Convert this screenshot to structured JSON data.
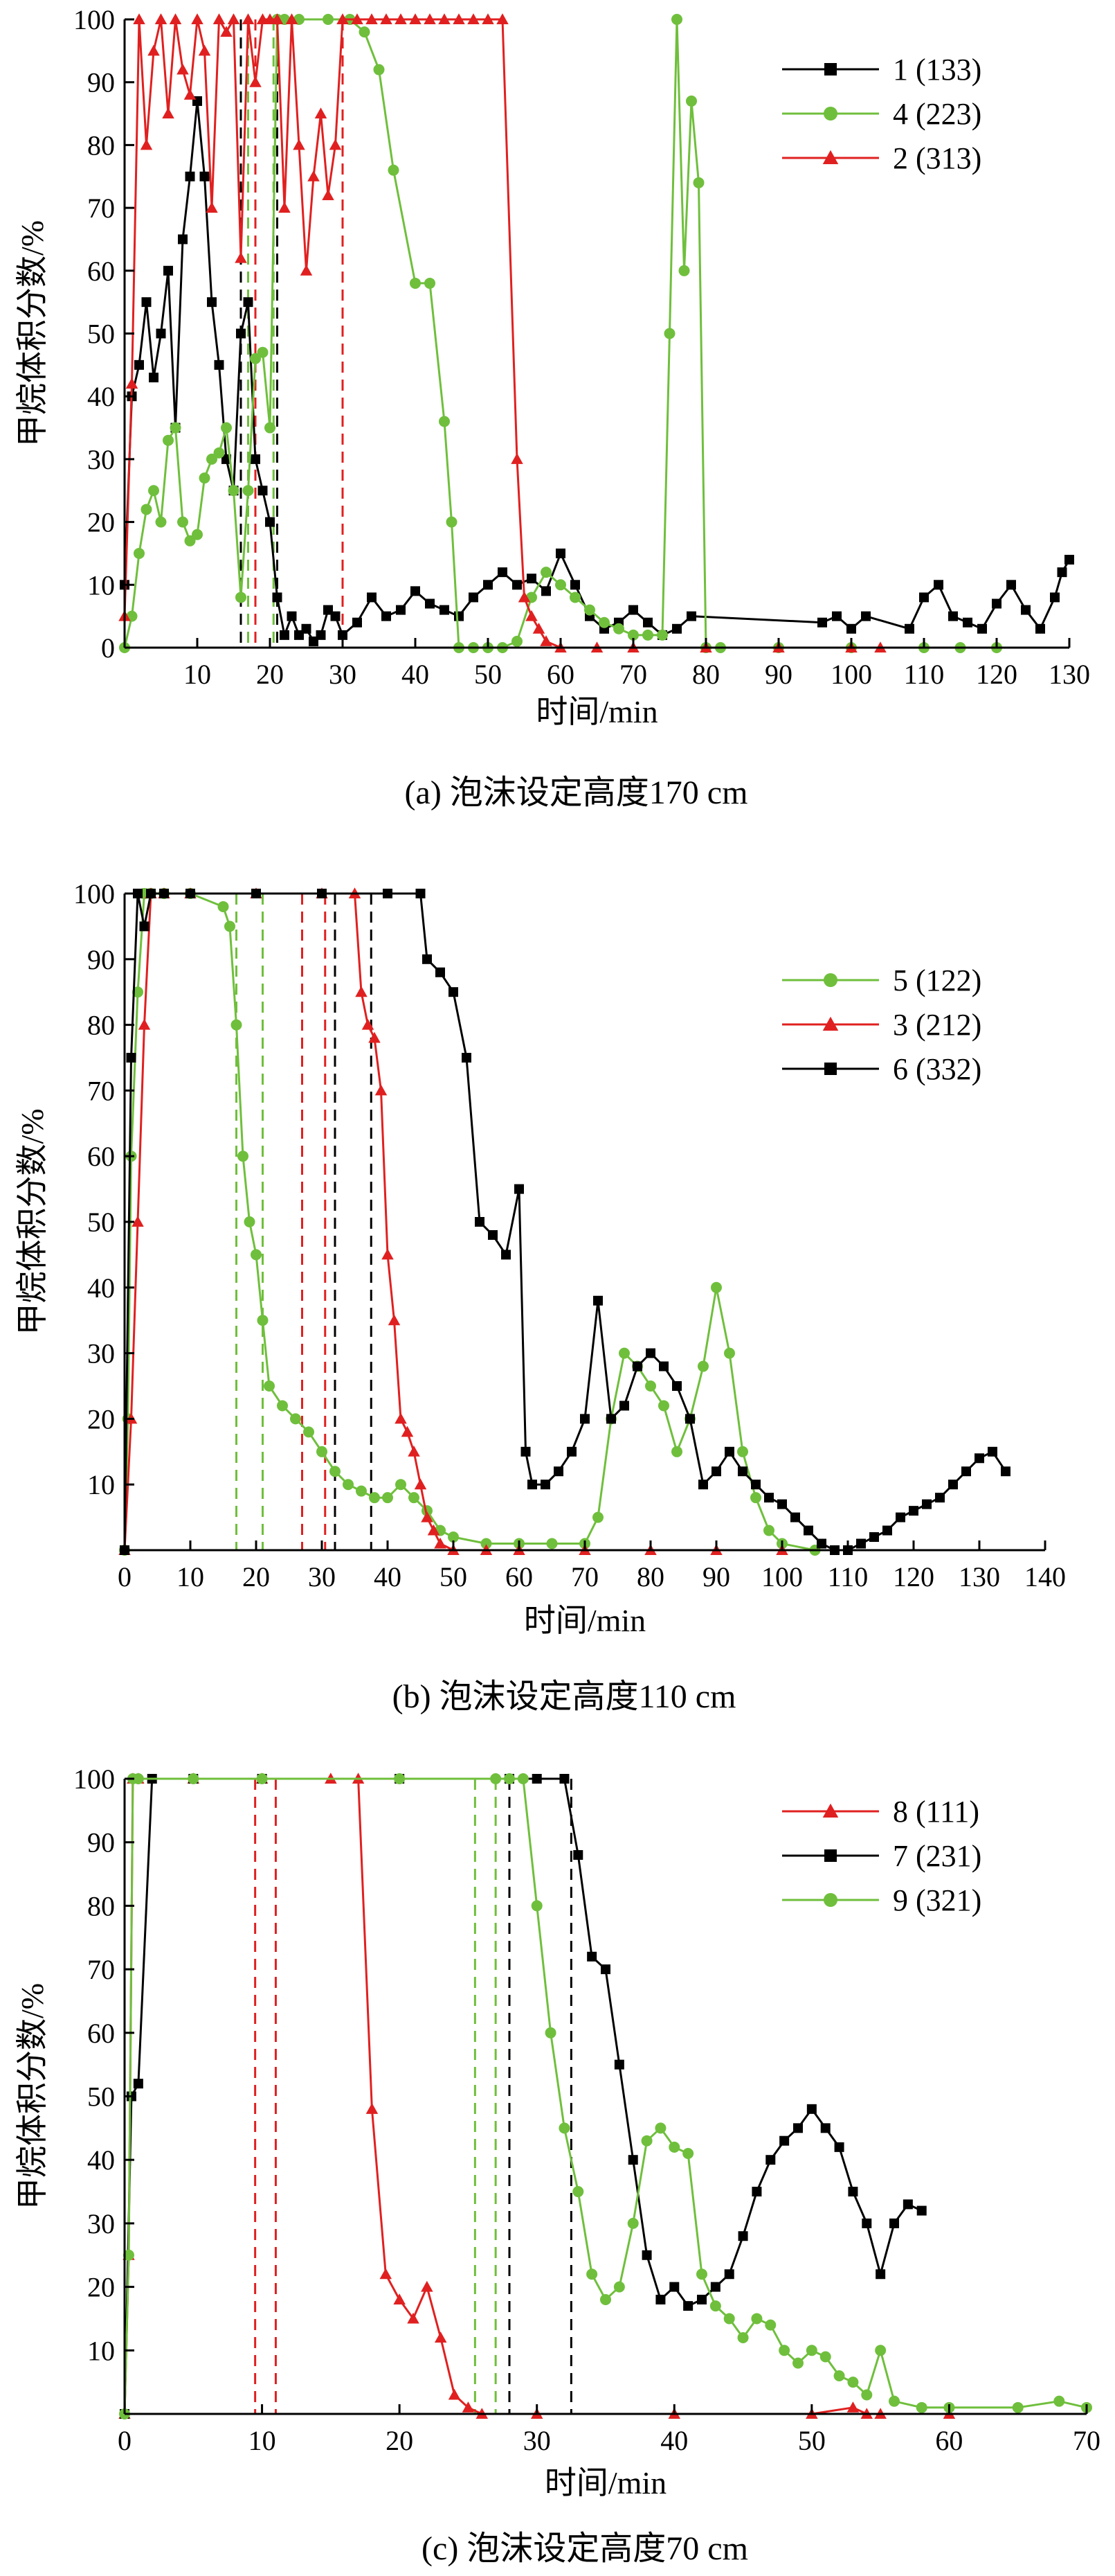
{
  "chart_data": [
    {
      "type": "line",
      "caption": "(a) 泡沫设定高度170 cm",
      "xlabel": "时间/min",
      "ylabel": "甲烷体积分数/%",
      "xlim": [
        0,
        130
      ],
      "ylim": [
        0,
        100
      ],
      "xticks": [
        10,
        20,
        30,
        40,
        50,
        60,
        70,
        80,
        90,
        100,
        110,
        120,
        130
      ],
      "yticks": [
        0,
        10,
        20,
        30,
        40,
        50,
        60,
        70,
        80,
        90,
        100
      ],
      "legend_position": "top-right",
      "series": [
        {
          "name": "1 (133)",
          "color": "#000000",
          "marker": "square",
          "x": [
            0,
            1,
            2,
            3,
            4,
            5,
            6,
            7,
            8,
            9,
            10,
            11,
            12,
            13,
            14,
            15,
            16,
            17,
            18,
            19,
            20,
            21,
            22,
            23,
            24,
            25,
            26,
            27,
            28,
            29,
            30,
            32,
            34,
            36,
            38,
            40,
            42,
            44,
            46,
            48,
            50,
            52,
            54,
            56,
            58,
            60,
            62,
            64,
            66,
            68,
            70,
            72,
            74,
            76,
            78,
            96,
            98,
            100,
            102,
            108,
            110,
            112,
            114,
            116,
            118,
            120,
            122,
            124,
            126,
            128,
            129,
            130
          ],
          "y": [
            10,
            40,
            45,
            55,
            43,
            50,
            60,
            35,
            65,
            75,
            87,
            75,
            55,
            45,
            30,
            25,
            50,
            55,
            30,
            25,
            20,
            8,
            2,
            5,
            2,
            3,
            1,
            2,
            6,
            5,
            2,
            4,
            8,
            5,
            6,
            9,
            7,
            6,
            5,
            8,
            10,
            12,
            10,
            11,
            9,
            15,
            10,
            5,
            3,
            4,
            6,
            4,
            2,
            3,
            5,
            4,
            5,
            3,
            5,
            3,
            8,
            10,
            5,
            4,
            3,
            7,
            10,
            6,
            3,
            8,
            12,
            14
          ]
        },
        {
          "name": "4 (223)",
          "color": "#6fbf3c",
          "marker": "circle",
          "x": [
            0,
            1,
            2,
            3,
            4,
            5,
            6,
            7,
            8,
            9,
            10,
            11,
            12,
            13,
            14,
            15,
            16,
            17,
            18,
            19,
            20,
            21,
            22,
            24,
            28,
            31,
            33,
            35,
            37,
            40,
            42,
            44,
            45,
            46,
            48,
            50,
            52,
            54,
            56,
            58,
            60,
            62,
            64,
            66,
            68,
            70,
            72,
            74,
            75,
            76,
            77,
            78,
            79,
            80,
            82,
            90,
            100,
            110,
            115,
            120
          ],
          "y": [
            0,
            5,
            15,
            22,
            25,
            20,
            33,
            35,
            20,
            17,
            18,
            27,
            30,
            31,
            35,
            25,
            8,
            25,
            46,
            47,
            35,
            100,
            100,
            100,
            100,
            100,
            98,
            92,
            76,
            58,
            58,
            36,
            20,
            0,
            0,
            0,
            0,
            1,
            8,
            12,
            10,
            8,
            6,
            4,
            3,
            2,
            2,
            2,
            50,
            100,
            60,
            87,
            74,
            0,
            0,
            0,
            0,
            0,
            0,
            0
          ]
        },
        {
          "name": "2 (313)",
          "color": "#e02020",
          "marker": "triangle",
          "x": [
            0,
            1,
            2,
            3,
            4,
            5,
            6,
            7,
            8,
            9,
            10,
            11,
            12,
            13,
            14,
            15,
            16,
            17,
            18,
            19,
            20,
            21,
            22,
            23,
            24,
            25,
            26,
            27,
            28,
            29,
            30,
            32,
            34,
            36,
            38,
            40,
            42,
            44,
            46,
            48,
            50,
            52,
            54,
            55,
            56,
            57,
            58,
            60,
            65,
            70,
            80,
            90,
            100,
            104
          ],
          "y": [
            5,
            42,
            100,
            80,
            95,
            100,
            85,
            100,
            92,
            88,
            100,
            95,
            70,
            100,
            98,
            100,
            62,
            100,
            90,
            100,
            100,
            100,
            70,
            100,
            80,
            60,
            75,
            85,
            72,
            80,
            100,
            100,
            100,
            100,
            100,
            100,
            100,
            100,
            100,
            100,
            100,
            100,
            30,
            8,
            5,
            3,
            1,
            0,
            0,
            0,
            0,
            0,
            0,
            0
          ]
        }
      ],
      "reference_lines": [
        {
          "x": 16,
          "color": "#000000"
        },
        {
          "x": 21,
          "color": "#000000"
        },
        {
          "x": 17,
          "color": "#6fbf3c"
        },
        {
          "x": 20.5,
          "color": "#6fbf3c"
        },
        {
          "x": 18,
          "color": "#e02020"
        },
        {
          "x": 30,
          "color": "#e02020"
        }
      ]
    },
    {
      "type": "line",
      "caption": "(b) 泡沫设定高度110 cm",
      "xlabel": "时间/min",
      "ylabel": "甲烷体积分数/%",
      "xlim": [
        0,
        140
      ],
      "ylim": [
        0,
        100
      ],
      "xticks": [
        0,
        10,
        20,
        30,
        40,
        50,
        60,
        70,
        80,
        90,
        100,
        110,
        120,
        130,
        140
      ],
      "yticks": [
        10,
        20,
        30,
        40,
        50,
        60,
        70,
        80,
        90,
        100
      ],
      "legend_position": "top-right",
      "series": [
        {
          "name": "5 (122)",
          "color": "#6fbf3c",
          "marker": "circle",
          "x": [
            0,
            0.5,
            1,
            2,
            3,
            4,
            6,
            10,
            15,
            16,
            17,
            18,
            19,
            20,
            21,
            22,
            24,
            26,
            28,
            30,
            32,
            34,
            36,
            38,
            40,
            42,
            44,
            46,
            48,
            50,
            55,
            60,
            65,
            70,
            72,
            74,
            76,
            78,
            80,
            82,
            84,
            86,
            88,
            90,
            92,
            94,
            96,
            98,
            100,
            105
          ],
          "y": [
            0,
            20,
            60,
            85,
            100,
            100,
            100,
            100,
            98,
            95,
            80,
            60,
            50,
            45,
            35,
            25,
            22,
            20,
            18,
            15,
            12,
            10,
            9,
            8,
            8,
            10,
            8,
            6,
            3,
            2,
            1,
            1,
            1,
            1,
            5,
            20,
            30,
            28,
            25,
            22,
            15,
            20,
            28,
            40,
            30,
            15,
            8,
            3,
            1,
            0
          ]
        },
        {
          "name": "3 (212)",
          "color": "#e02020",
          "marker": "triangle",
          "x": [
            0,
            1,
            2,
            3,
            4,
            6,
            10,
            20,
            30,
            35,
            36,
            37,
            38,
            39,
            40,
            41,
            42,
            43,
            44,
            45,
            46,
            47,
            48,
            50,
            55,
            60,
            70,
            80,
            90,
            100
          ],
          "y": [
            0,
            20,
            50,
            80,
            100,
            100,
            100,
            100,
            100,
            100,
            85,
            80,
            78,
            70,
            45,
            35,
            20,
            18,
            15,
            10,
            5,
            3,
            1,
            0,
            0,
            0,
            0,
            0,
            0,
            0
          ]
        },
        {
          "name": "6 (332)",
          "color": "#000000",
          "marker": "square",
          "x": [
            0,
            1,
            2,
            3,
            4,
            6,
            10,
            20,
            30,
            40,
            45,
            46,
            48,
            50,
            52,
            54,
            56,
            58,
            60,
            61,
            62,
            64,
            66,
            68,
            70,
            72,
            74,
            76,
            78,
            80,
            82,
            84,
            86,
            88,
            90,
            92,
            94,
            96,
            98,
            100,
            102,
            104,
            106,
            108,
            110,
            112,
            114,
            116,
            118,
            120,
            122,
            124,
            126,
            128,
            130,
            132,
            134
          ],
          "y": [
            0,
            75,
            100,
            95,
            100,
            100,
            100,
            100,
            100,
            100,
            100,
            90,
            88,
            85,
            75,
            50,
            48,
            45,
            55,
            15,
            10,
            10,
            12,
            15,
            20,
            38,
            20,
            22,
            28,
            30,
            28,
            25,
            20,
            10,
            12,
            15,
            12,
            10,
            8,
            7,
            5,
            3,
            1,
            0,
            0,
            1,
            2,
            3,
            5,
            6,
            7,
            8,
            10,
            12,
            14,
            15,
            12
          ]
        }
      ],
      "reference_lines": [
        {
          "x": 17,
          "color": "#6fbf3c"
        },
        {
          "x": 21,
          "color": "#6fbf3c"
        },
        {
          "x": 27,
          "color": "#e02020"
        },
        {
          "x": 30.5,
          "color": "#e02020"
        },
        {
          "x": 32,
          "color": "#000000"
        },
        {
          "x": 37.5,
          "color": "#000000"
        }
      ]
    },
    {
      "type": "line",
      "caption": "(c) 泡沫设定高度70 cm",
      "xlabel": "时间/min",
      "ylabel": "甲烷体积分数/%",
      "xlim": [
        0,
        70
      ],
      "ylim": [
        0,
        100
      ],
      "xticks": [
        0,
        10,
        20,
        30,
        40,
        50,
        60,
        70
      ],
      "yticks": [
        10,
        20,
        30,
        40,
        50,
        60,
        70,
        80,
        90,
        100
      ],
      "legend_position": "top-right",
      "series": [
        {
          "name": "8 (111)",
          "color": "#e02020",
          "marker": "triangle",
          "x": [
            0,
            0.3,
            0.6,
            1,
            5,
            10,
            15,
            17,
            18,
            19,
            20,
            21,
            22,
            23,
            24,
            25,
            26,
            30,
            40,
            50,
            53,
            54,
            55,
            60
          ],
          "y": [
            0,
            25,
            100,
            100,
            100,
            100,
            100,
            100,
            48,
            22,
            18,
            15,
            20,
            12,
            3,
            1,
            0,
            0,
            0,
            0,
            1,
            0,
            0,
            0
          ]
        },
        {
          "name": "7 (231)",
          "color": "#000000",
          "marker": "square",
          "x": [
            0,
            0.5,
            1,
            2,
            5,
            10,
            20,
            28,
            30,
            32,
            33,
            34,
            35,
            36,
            37,
            38,
            39,
            40,
            41,
            42,
            43,
            44,
            45,
            46,
            47,
            48,
            49,
            50,
            51,
            52,
            53,
            54,
            55,
            56,
            57,
            58
          ],
          "y": [
            0,
            50,
            52,
            100,
            100,
            100,
            100,
            100,
            100,
            100,
            88,
            72,
            70,
            55,
            40,
            25,
            18,
            20,
            17,
            18,
            20,
            22,
            28,
            35,
            40,
            43,
            45,
            48,
            45,
            42,
            35,
            30,
            22,
            30,
            33,
            32
          ]
        },
        {
          "name": "9 (321)",
          "color": "#6fbf3c",
          "marker": "circle",
          "x": [
            0,
            0.3,
            0.6,
            1,
            5,
            10,
            20,
            27,
            28,
            29,
            30,
            31,
            32,
            33,
            34,
            35,
            36,
            37,
            38,
            39,
            40,
            41,
            42,
            43,
            44,
            45,
            46,
            47,
            48,
            49,
            50,
            51,
            52,
            53,
            54,
            55,
            56,
            58,
            60,
            65,
            68,
            70
          ],
          "y": [
            0,
            25,
            100,
            100,
            100,
            100,
            100,
            100,
            100,
            100,
            80,
            60,
            45,
            35,
            22,
            18,
            20,
            30,
            43,
            45,
            42,
            41,
            22,
            17,
            15,
            12,
            15,
            14,
            10,
            8,
            10,
            9,
            6,
            5,
            3,
            10,
            2,
            1,
            1,
            1,
            2,
            1
          ]
        }
      ],
      "reference_lines": [
        {
          "x": 9.5,
          "color": "#e02020"
        },
        {
          "x": 11,
          "color": "#e02020"
        },
        {
          "x": 25.5,
          "color": "#6fbf3c"
        },
        {
          "x": 27,
          "color": "#6fbf3c"
        },
        {
          "x": 28,
          "color": "#000000"
        },
        {
          "x": 32.5,
          "color": "#000000"
        }
      ]
    }
  ]
}
